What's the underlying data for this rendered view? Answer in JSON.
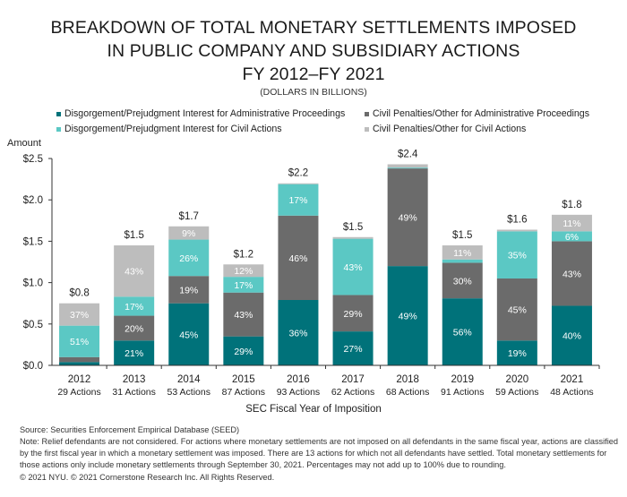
{
  "title_lines": [
    "BREAKDOWN OF TOTAL MONETARY SETTLEMENTS IMPOSED",
    "IN PUBLIC COMPANY AND SUBSIDIARY ACTIONS",
    "FY 2012–FY 2021"
  ],
  "subtitle": "(DOLLARS IN BILLIONS)",
  "legend": [
    {
      "label": "Disgorgement/Prejudgment Interest for Administrative Proceedings",
      "color": "#00727a"
    },
    {
      "label": "Civil Penalties/Other for Administrative Proceedings",
      "color": "#6b6b6b"
    },
    {
      "label": "Disgorgement/Prejudgment Interest for Civil Actions",
      "color": "#5bc8c4"
    },
    {
      "label": "Civil Penalties/Other for Civil Actions",
      "color": "#bdbdbd"
    }
  ],
  "footer": {
    "source": "Source: Securities Enforcement Empirical Database (SEED)",
    "note": "Note: Relief defendants are not considered. For actions where monetary settlements are not imposed on all defendants in the same fiscal year, actions are classified by the first fiscal year in which a monetary settlement was imposed. There are 13 actions for which not all defendants have settled. Total monetary settlements for those actions only include monetary settlements through September 30, 2021. Percentages may not add up to 100% due to rounding.",
    "copyright": "© 2021 NYU. © 2021 Cornerstone Research Inc. All Rights Reserved."
  },
  "chart_data": {
    "type": "bar",
    "stacked": true,
    "title": "Breakdown of Total Monetary Settlements Imposed in Public Company and Subsidiary Actions FY 2012–FY 2021",
    "ylabel": "Amount",
    "xlabel": "SEC Fiscal Year of Imposition",
    "ylim": [
      0,
      2.5
    ],
    "yticks": [
      0.0,
      0.5,
      1.0,
      1.5,
      2.0,
      2.5
    ],
    "ytick_labels": [
      "$0.0",
      "$0.5",
      "$1.0",
      "$1.5",
      "$2.0",
      "$2.5"
    ],
    "grid": false,
    "legend_position": "top",
    "categories": [
      "2012",
      "2013",
      "2014",
      "2015",
      "2016",
      "2017",
      "2018",
      "2019",
      "2020",
      "2021"
    ],
    "category_sublabels": [
      "29 Actions",
      "31 Actions",
      "53 Actions",
      "87 Actions",
      "93 Actions",
      "62 Actions",
      "68 Actions",
      "91 Actions",
      "59 Actions",
      "48 Actions"
    ],
    "totals": [
      "$0.8",
      "$1.5",
      "$1.7",
      "$1.2",
      "$2.2",
      "$1.5",
      "$2.4",
      "$1.5",
      "$1.6",
      "$1.8"
    ],
    "series": [
      {
        "name": "Disgorgement/Prejudgment Interest for Administrative Proceedings",
        "color": "#00727a",
        "label_color": "#ffffff",
        "values": [
          0.04,
          0.3,
          0.75,
          0.35,
          0.79,
          0.41,
          1.2,
          0.81,
          0.3,
          0.72
        ],
        "pct_labels": [
          "",
          "21%",
          "45%",
          "29%",
          "36%",
          "27%",
          "49%",
          "56%",
          "19%",
          "40%"
        ]
      },
      {
        "name": "Civil Penalties/Other for Administrative Proceedings",
        "color": "#6b6b6b",
        "label_color": "#ffffff",
        "values": [
          0.06,
          0.3,
          0.33,
          0.53,
          1.02,
          0.44,
          1.18,
          0.43,
          0.75,
          0.78
        ],
        "pct_labels": [
          "",
          "20%",
          "19%",
          "43%",
          "46%",
          "29%",
          "49%",
          "30%",
          "45%",
          "43%"
        ]
      },
      {
        "name": "Disgorgement/Prejudgment Interest for Civil Actions",
        "color": "#5bc8c4",
        "label_color": "#ffffff",
        "values": [
          0.38,
          0.23,
          0.44,
          0.19,
          0.38,
          0.68,
          0.01,
          0.04,
          0.57,
          0.12
        ],
        "pct_labels": [
          "51%",
          "17%",
          "26%",
          "17%",
          "17%",
          "43%",
          "",
          "",
          "35%",
          "6%"
        ]
      },
      {
        "name": "Civil Penalties/Other for Civil Actions",
        "color": "#bdbdbd",
        "label_color": "#ffffff",
        "values": [
          0.27,
          0.62,
          0.16,
          0.15,
          0.01,
          0.02,
          0.04,
          0.17,
          0.02,
          0.2
        ],
        "pct_labels": [
          "37%",
          "43%",
          "9%",
          "12%",
          "",
          "",
          "",
          "11%",
          "",
          "11%"
        ]
      }
    ]
  }
}
